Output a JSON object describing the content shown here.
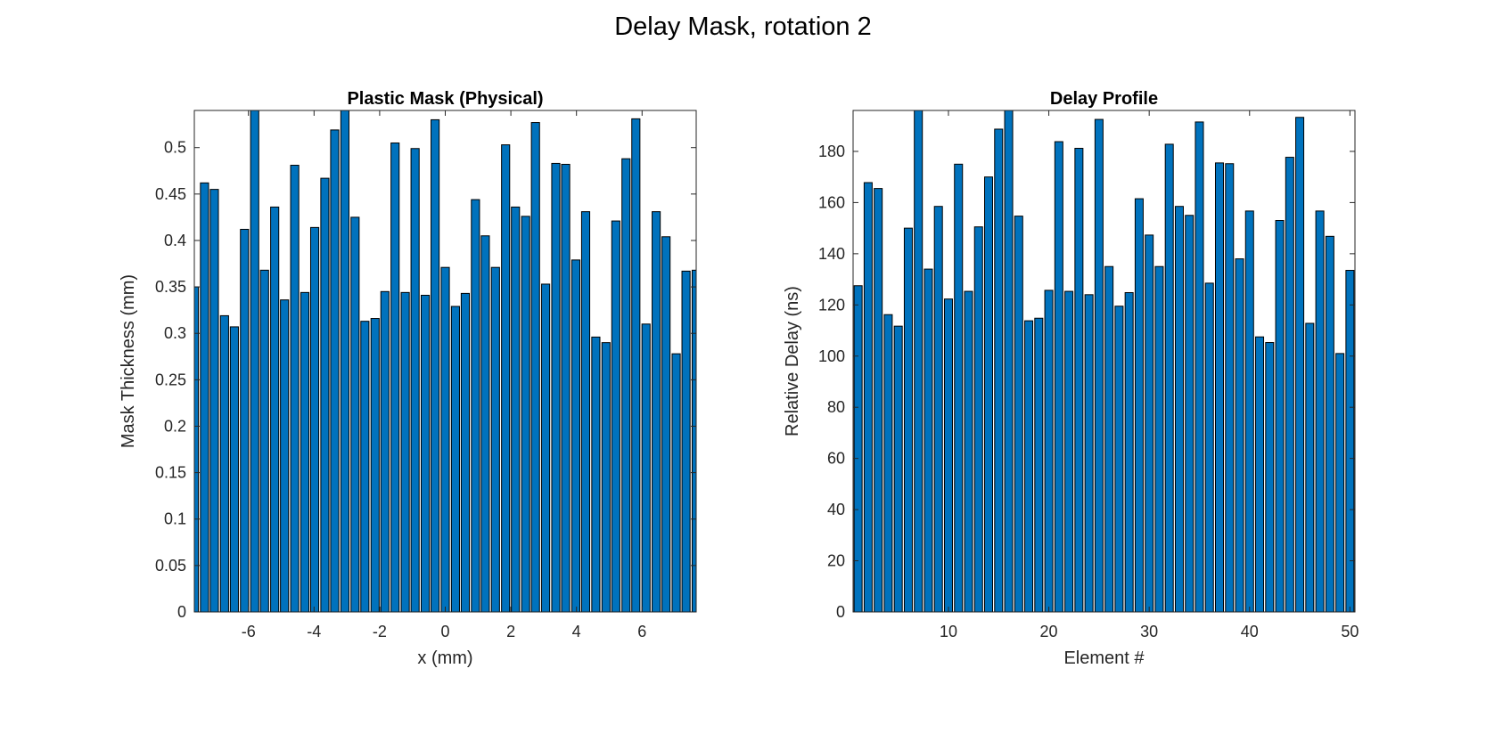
{
  "figure": {
    "title": "Delay Mask, rotation 2"
  },
  "colors": {
    "bar_fill": "#0072BD",
    "bar_edge": "#000000",
    "axis": "#262626"
  },
  "chart_data": [
    {
      "type": "bar",
      "title": "Plastic Mask (Physical)",
      "xlabel": "x (mm)",
      "ylabel": "Mask Thickness (mm)",
      "xlim": [
        -7.65,
        7.65
      ],
      "ylim": [
        0,
        0.54
      ],
      "xticks": [
        -6,
        -4,
        -2,
        0,
        2,
        4,
        6
      ],
      "xtick_labels": [
        "-6",
        "-4",
        "-2",
        "0",
        "2",
        "4",
        "6"
      ],
      "yticks": [
        0,
        0.05,
        0.1,
        0.15,
        0.2,
        0.25,
        0.3,
        0.35,
        0.4,
        0.45,
        0.5
      ],
      "ytick_labels": [
        "0",
        "0.05",
        "0.1",
        "0.15",
        "0.2",
        "0.25",
        "0.3",
        "0.35",
        "0.4",
        "0.45",
        "0.5"
      ],
      "x": [
        -7.65,
        -7.34,
        -7.04,
        -6.73,
        -6.43,
        -6.12,
        -5.81,
        -5.51,
        -5.2,
        -4.9,
        -4.59,
        -4.28,
        -3.98,
        -3.67,
        -3.37,
        -3.06,
        -2.75,
        -2.45,
        -2.14,
        -1.84,
        -1.53,
        -1.22,
        -0.92,
        -0.61,
        -0.31,
        0.0,
        0.31,
        0.61,
        0.92,
        1.22,
        1.53,
        1.84,
        2.14,
        2.45,
        2.75,
        3.06,
        3.37,
        3.67,
        3.98,
        4.28,
        4.59,
        4.9,
        5.2,
        5.51,
        5.81,
        6.12,
        6.43,
        6.73,
        7.04,
        7.34,
        7.65
      ],
      "values": [
        0.35,
        0.462,
        0.455,
        0.319,
        0.307,
        0.412,
        0.54,
        0.368,
        0.436,
        0.336,
        0.481,
        0.344,
        0.414,
        0.467,
        0.519,
        0.54,
        0.425,
        0.313,
        0.316,
        0.345,
        0.505,
        0.344,
        0.499,
        0.341,
        0.53,
        0.371,
        0.329,
        0.343,
        0.444,
        0.405,
        0.371,
        0.503,
        0.436,
        0.426,
        0.527,
        0.353,
        0.483,
        0.482,
        0.379,
        0.431,
        0.296,
        0.29,
        0.421,
        0.488,
        0.531,
        0.31,
        0.431,
        0.404,
        0.278,
        0.367,
        0.368
      ]
    },
    {
      "type": "bar",
      "title": "Delay Profile",
      "xlabel": "Element #",
      "ylabel": "Relative Delay (ns)",
      "xlim": [
        0.5,
        50.5
      ],
      "ylim": [
        0,
        196
      ],
      "xticks": [
        10,
        20,
        30,
        40,
        50
      ],
      "xtick_labels": [
        "10",
        "20",
        "30",
        "40",
        "50"
      ],
      "yticks": [
        0,
        20,
        40,
        60,
        80,
        100,
        120,
        140,
        160,
        180
      ],
      "ytick_labels": [
        "0",
        "20",
        "40",
        "60",
        "80",
        "100",
        "120",
        "140",
        "160",
        "180"
      ],
      "x": [
        1,
        2,
        3,
        4,
        5,
        6,
        7,
        8,
        9,
        10,
        11,
        12,
        13,
        14,
        15,
        16,
        17,
        18,
        19,
        20,
        21,
        22,
        23,
        24,
        25,
        26,
        27,
        28,
        29,
        30,
        31,
        32,
        33,
        34,
        35,
        36,
        37,
        38,
        39,
        40,
        41,
        42,
        43,
        44,
        45,
        46,
        47,
        48,
        49,
        50
      ],
      "values": [
        127.5,
        167.8,
        165.5,
        116.2,
        111.7,
        150,
        196,
        134,
        158.5,
        122.3,
        175,
        125.3,
        150.5,
        170,
        188.7,
        196,
        154.7,
        113.8,
        114.8,
        125.7,
        183.8,
        125.3,
        181.2,
        124,
        192.5,
        135,
        119.5,
        124.8,
        161.5,
        147.3,
        135,
        182.8,
        158.5,
        155,
        191.5,
        128.5,
        175.5,
        175.2,
        138,
        156.7,
        107.5,
        105.3,
        153,
        177.7,
        193.3,
        112.8,
        156.7,
        146.8,
        101,
        133.5
      ]
    }
  ]
}
